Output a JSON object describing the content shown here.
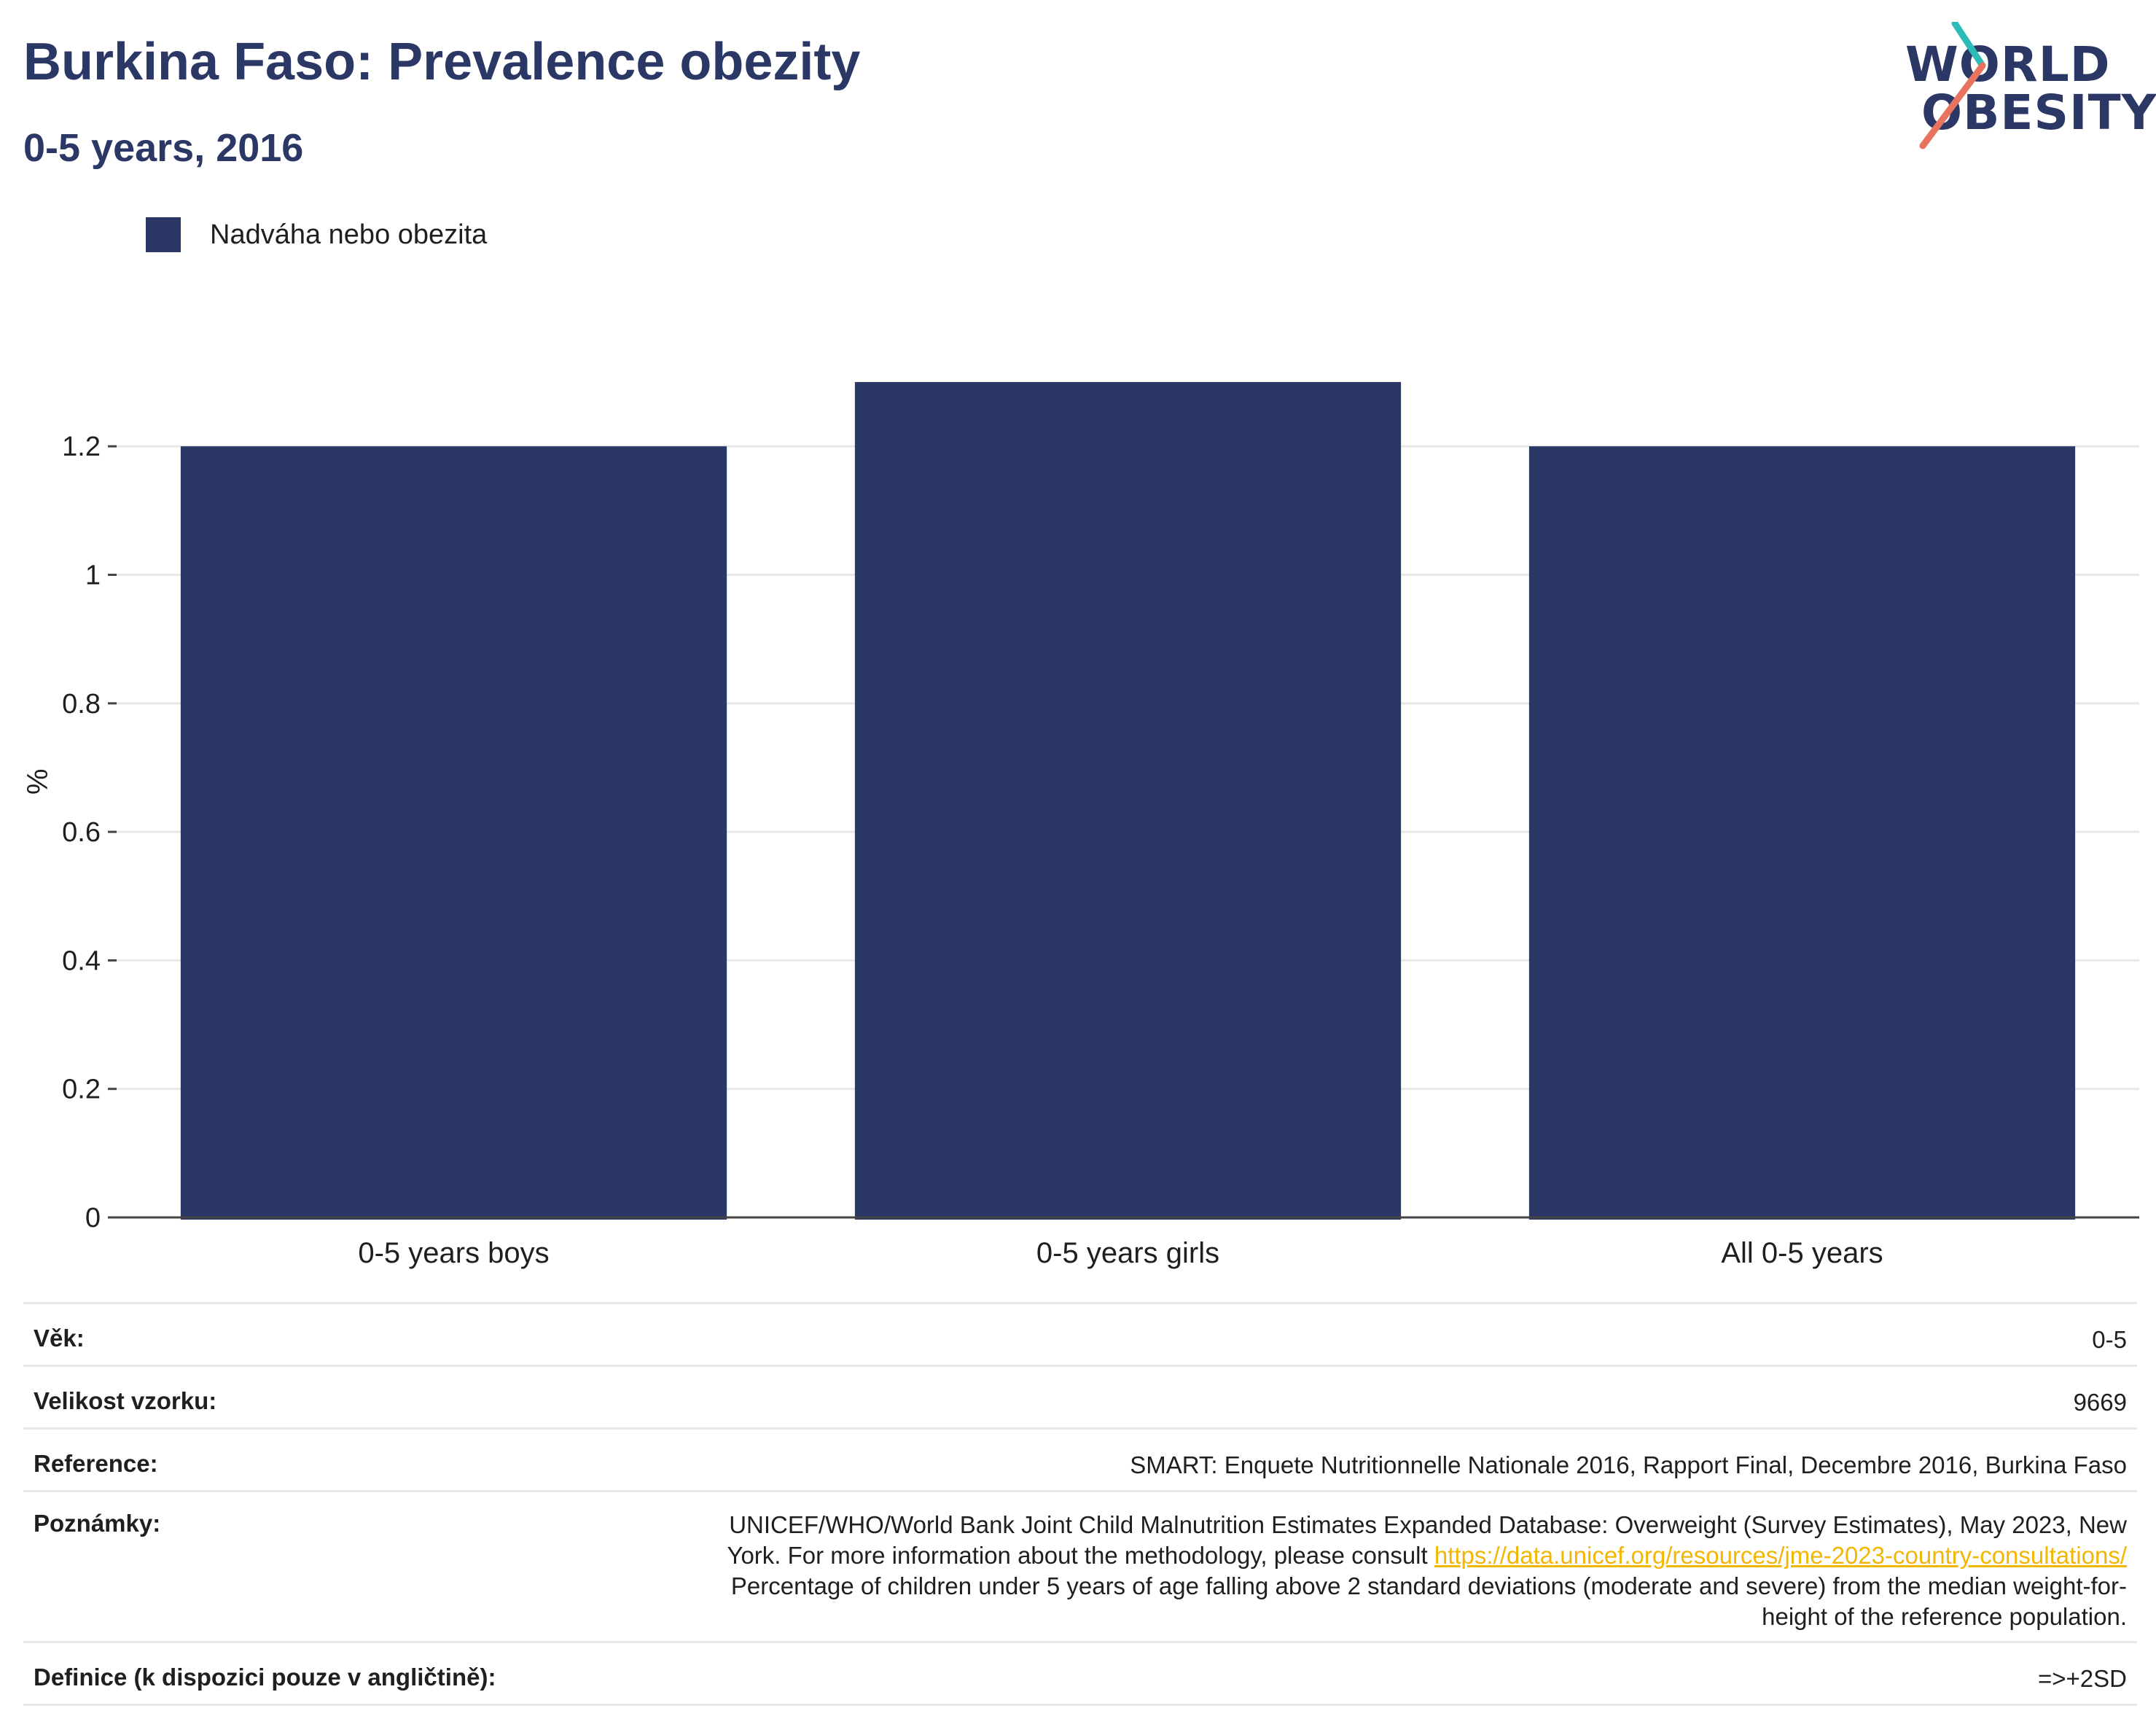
{
  "header": {
    "title": "Burkina Faso: Prevalence obezity",
    "subtitle": "0-5 years, 2016"
  },
  "logo": {
    "line1": "WORLD",
    "line2": "OBESITY",
    "colors": {
      "navy": "#2b3764",
      "teal": "#2ebcb6",
      "coral": "#e8735f"
    }
  },
  "chart_data": {
    "type": "bar",
    "categories": [
      "0-5 years boys",
      "0-5 years girls",
      "All 0-5 years"
    ],
    "series": [
      {
        "name": "Nadváha nebo obezita",
        "values": [
          1.2,
          1.3,
          1.2
        ],
        "color": "#2b3764"
      }
    ],
    "ylabel": "%",
    "ylim": [
      0,
      1.35
    ],
    "yticks": [
      0,
      0.2,
      0.4,
      0.6,
      0.8,
      1,
      1.2
    ],
    "ytick_labels": [
      "0",
      "0.2",
      "0.4",
      "0.6",
      "0.8",
      "1",
      "1.2"
    ],
    "grid": true,
    "legend_position": "top-left"
  },
  "info": {
    "age_label": "Věk:",
    "age_value": "0-5",
    "sample_label": "Velikost vzorku:",
    "sample_value": "9669",
    "reference_label": "Reference:",
    "reference_value": "SMART: Enquete Nutritionnelle Nationale 2016, Rapport Final, Decembre 2016, Burkina Faso",
    "notes_label": "Poznámky:",
    "notes_line1": "UNICEF/WHO/World Bank Joint Child Malnutrition Estimates Expanded Database: Overweight (Survey Estimates), May 2023, New",
    "notes_line2_pre": "York. For more information about the methodology, please consult ",
    "notes_link": "https://data.unicef.org/resources/jme-2023-country-consultations/",
    "notes_line3": "Percentage of children under 5 years of age falling above 2 standard deviations (moderate and severe) from the median weight-for-",
    "notes_line4": "height of the reference population.",
    "definition_label": "Definice (k dispozici pouze v angličtině):",
    "definition_value": "=>+2SD"
  }
}
